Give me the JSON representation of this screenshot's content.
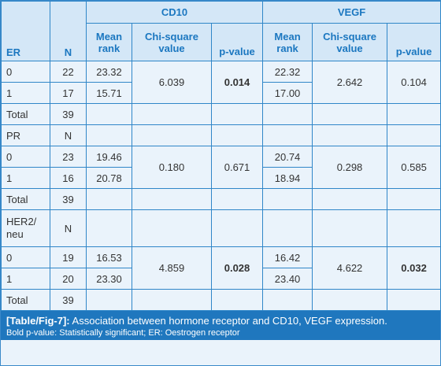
{
  "table": {
    "groups": [
      "CD10",
      "VEGF"
    ],
    "columns": {
      "first": "ER",
      "n": "N",
      "mean_rank": "Mean rank",
      "chi_square": "Chi-square value",
      "p_value": "p-value"
    },
    "blocks": [
      {
        "label": "ER",
        "n_label": "",
        "rows": [
          {
            "category": "0",
            "n": "22",
            "cd10_mean_rank": "23.32",
            "vegf_mean_rank": "22.32"
          },
          {
            "category": "1",
            "n": "17",
            "cd10_mean_rank": "15.71",
            "vegf_mean_rank": "17.00"
          }
        ],
        "cd10_chi_square": "6.039",
        "cd10_p_value": "0.014",
        "vegf_chi_square": "2.642",
        "vegf_p_value": "0.104",
        "total_label": "Total",
        "total_n": "39"
      },
      {
        "label": "PR",
        "n_label": "N",
        "rows": [
          {
            "category": "0",
            "n": "23",
            "cd10_mean_rank": "19.46",
            "vegf_mean_rank": "20.74"
          },
          {
            "category": "1",
            "n": "16",
            "cd10_mean_rank": "20.78",
            "vegf_mean_rank": "18.94"
          }
        ],
        "cd10_chi_square": "0.180",
        "cd10_p_value": "0.671",
        "vegf_chi_square": "0.298",
        "vegf_p_value": "0.585",
        "total_label": "Total",
        "total_n": "39"
      },
      {
        "label": "HER2/ neu",
        "n_label": "N",
        "rows": [
          {
            "category": "0",
            "n": "19",
            "cd10_mean_rank": "16.53",
            "vegf_mean_rank": "16.42"
          },
          {
            "category": "1",
            "n": "20",
            "cd10_mean_rank": "23.30",
            "vegf_mean_rank": "23.40"
          }
        ],
        "cd10_chi_square": "4.859",
        "cd10_p_value": "0.028",
        "vegf_chi_square": "4.622",
        "vegf_p_value": "0.032",
        "total_label": "Total",
        "total_n": "39"
      }
    ]
  },
  "caption": {
    "tag": "[Table/Fig-7]:",
    "title": "Association between hormone receptor and CD10, VEGF expression.",
    "note": "Bold p-value: Statistically significant; ER: Oestrogen receptor"
  },
  "colors": {
    "border": "#2f86c8",
    "header_bg": "#d4e7f7",
    "header_text": "#1b77c0",
    "body_bg": "#eaf3fb",
    "caption_bg": "#1f77be"
  }
}
